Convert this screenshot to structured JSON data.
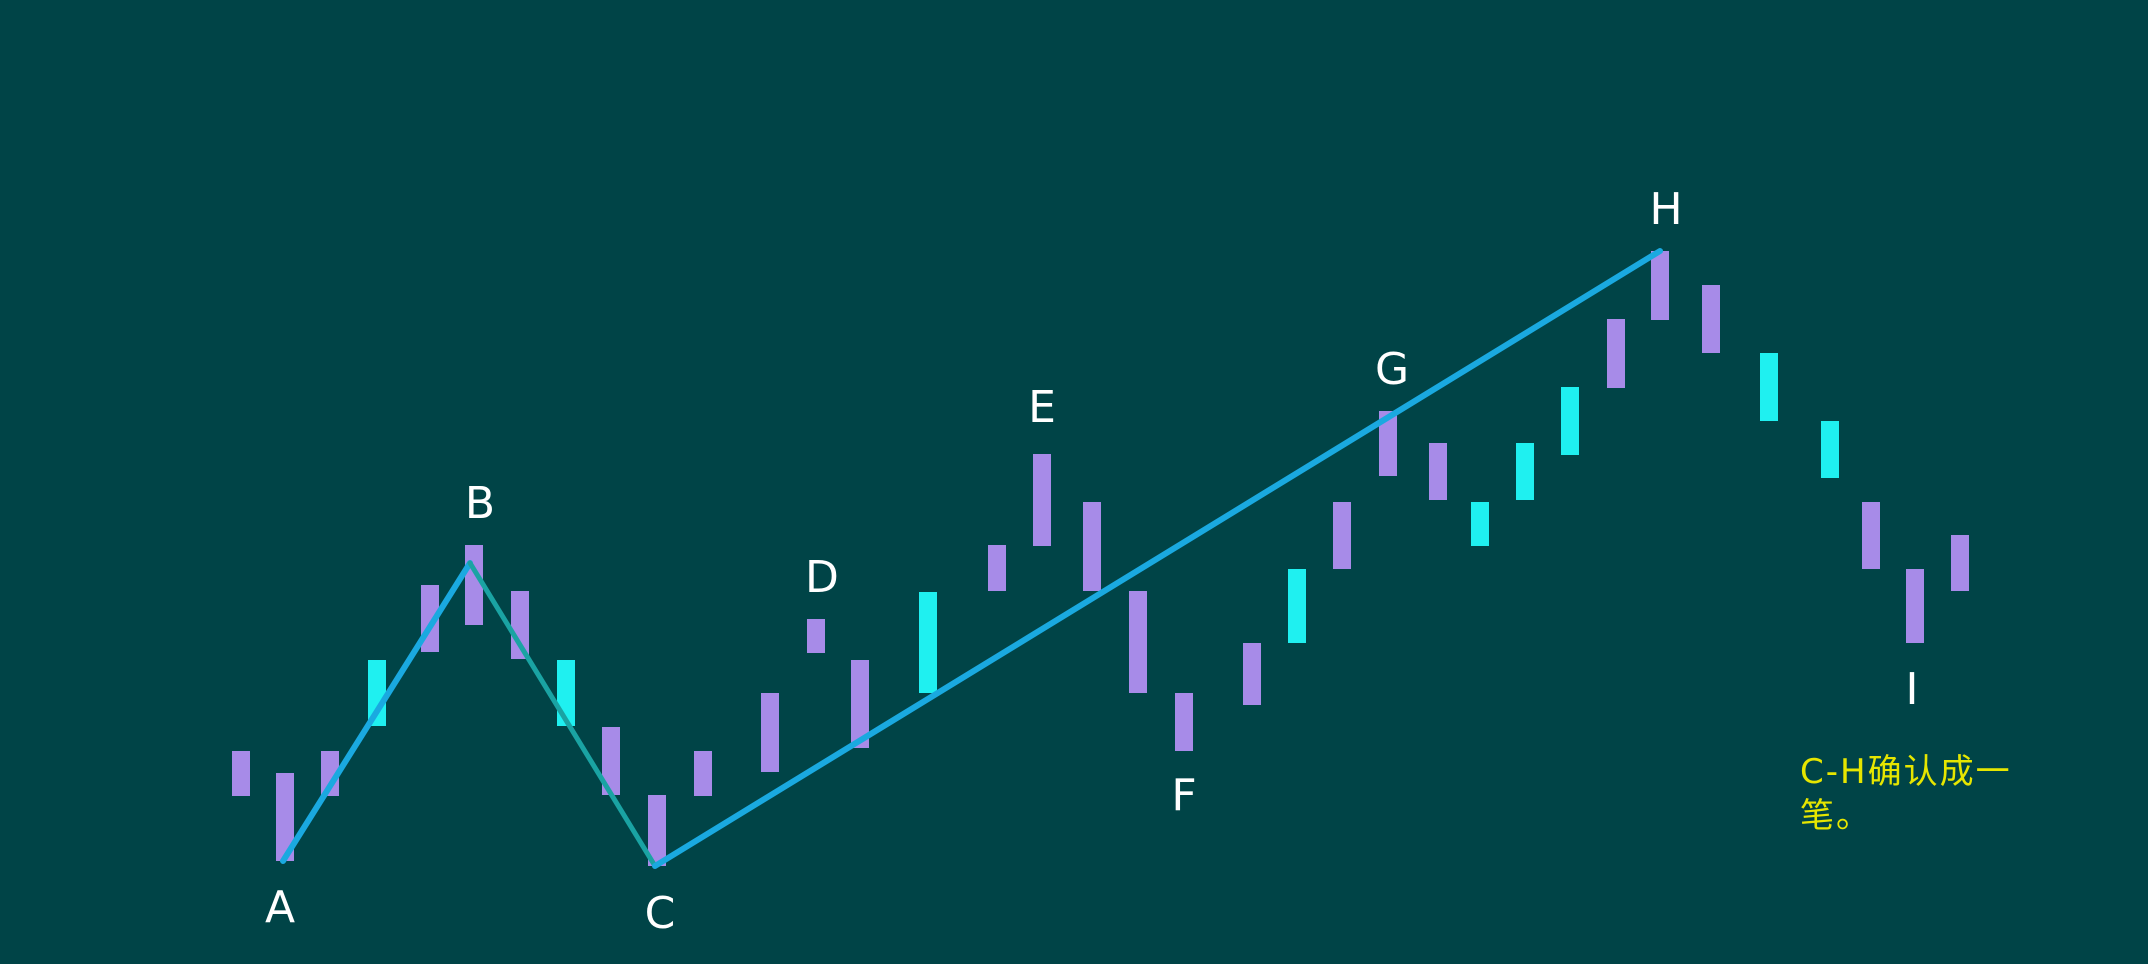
{
  "diagram": {
    "colors": {
      "background": "#004447",
      "bar_down": "#a78be8",
      "bar_up": "#1ff0f0",
      "stroke_main": "#1aa9e0",
      "stroke_segment": "#1aa3a3",
      "label": "#ffffff",
      "note": "#e6e600"
    },
    "labels": {
      "A": "A",
      "B": "B",
      "C": "C",
      "D": "D",
      "E": "E",
      "F": "F",
      "G": "G",
      "H": "H",
      "I": "I"
    },
    "note": "C-H确认成一笔。"
  }
}
